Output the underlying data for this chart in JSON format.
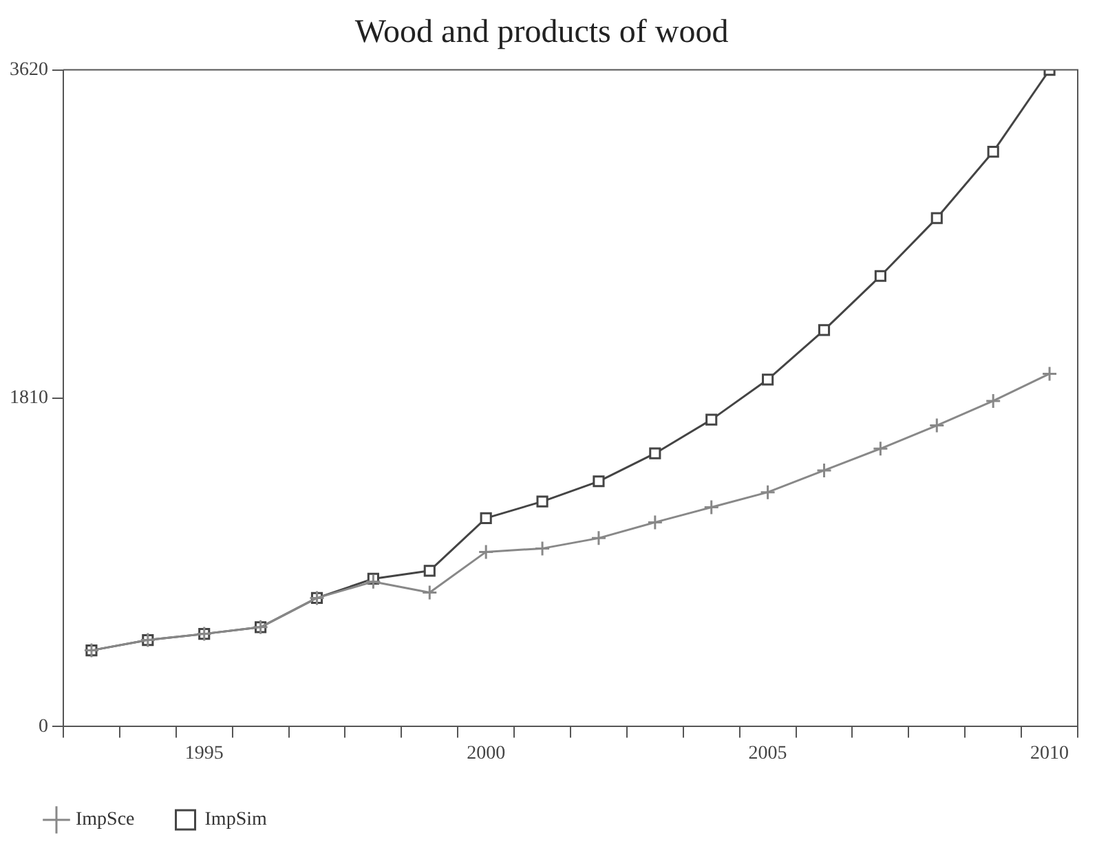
{
  "chart_data": {
    "type": "line",
    "title": "Wood and products of wood",
    "categories": [
      null,
      null,
      "1995",
      null,
      null,
      null,
      null,
      "2000",
      null,
      null,
      null,
      null,
      "2005",
      null,
      null,
      null,
      null,
      "2010"
    ],
    "series": [
      {
        "name": "ImpSce",
        "color": "#888888",
        "marker": "cross",
        "values": [
          420,
          477,
          511,
          548,
          709,
          799,
          739,
          963,
          982,
          1039,
          1126,
          1209,
          1292,
          1412,
          1532,
          1660,
          1795,
          1945
        ]
      },
      {
        "name": "ImpSim",
        "color": "#444444",
        "marker": "square",
        "values": [
          420,
          477,
          511,
          548,
          709,
          815,
          859,
          1149,
          1241,
          1352,
          1506,
          1692,
          1913,
          2186,
          2484,
          2803,
          3169,
          3620
        ]
      }
    ],
    "ylim": [
      0,
      3620
    ],
    "yticks": [
      0,
      1810,
      3620
    ],
    "grid": false,
    "legend": "bottom left",
    "line_style": "solid"
  }
}
